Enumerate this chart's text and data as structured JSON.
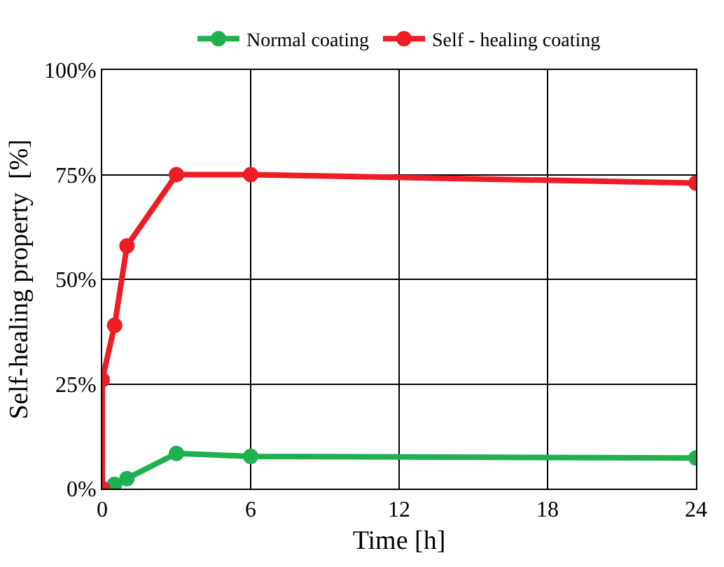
{
  "chart_data": {
    "type": "line",
    "xlabel": "Time [h]",
    "ylabel": "Self-healing property  [%]",
    "series": [
      {
        "name": "Normal coating",
        "color": "#1fb04f",
        "x": [
          0,
          0.5,
          1,
          3,
          6,
          24
        ],
        "values": [
          0,
          1,
          2.4,
          8.4,
          7.7,
          7.3
        ]
      },
      {
        "name": "Self - healing coating",
        "color": "#ee1c25",
        "x": [
          0,
          0,
          0.5,
          1,
          3,
          6,
          24
        ],
        "values": [
          0,
          26,
          39,
          58,
          75,
          75,
          73
        ]
      }
    ],
    "xlim": [
      0,
      24
    ],
    "xticks": [
      0,
      6,
      12,
      18,
      24
    ],
    "ylim": [
      0,
      100
    ],
    "yticks": [
      {
        "value": 0,
        "label": "0%"
      },
      {
        "value": 25,
        "label": "25%"
      },
      {
        "value": 50,
        "label": "50%"
      },
      {
        "value": 75,
        "label": "75%"
      },
      {
        "value": 100,
        "label": "100%"
      }
    ],
    "grid": true,
    "legend": "top",
    "marker": "circle",
    "line_style": "solid"
  }
}
